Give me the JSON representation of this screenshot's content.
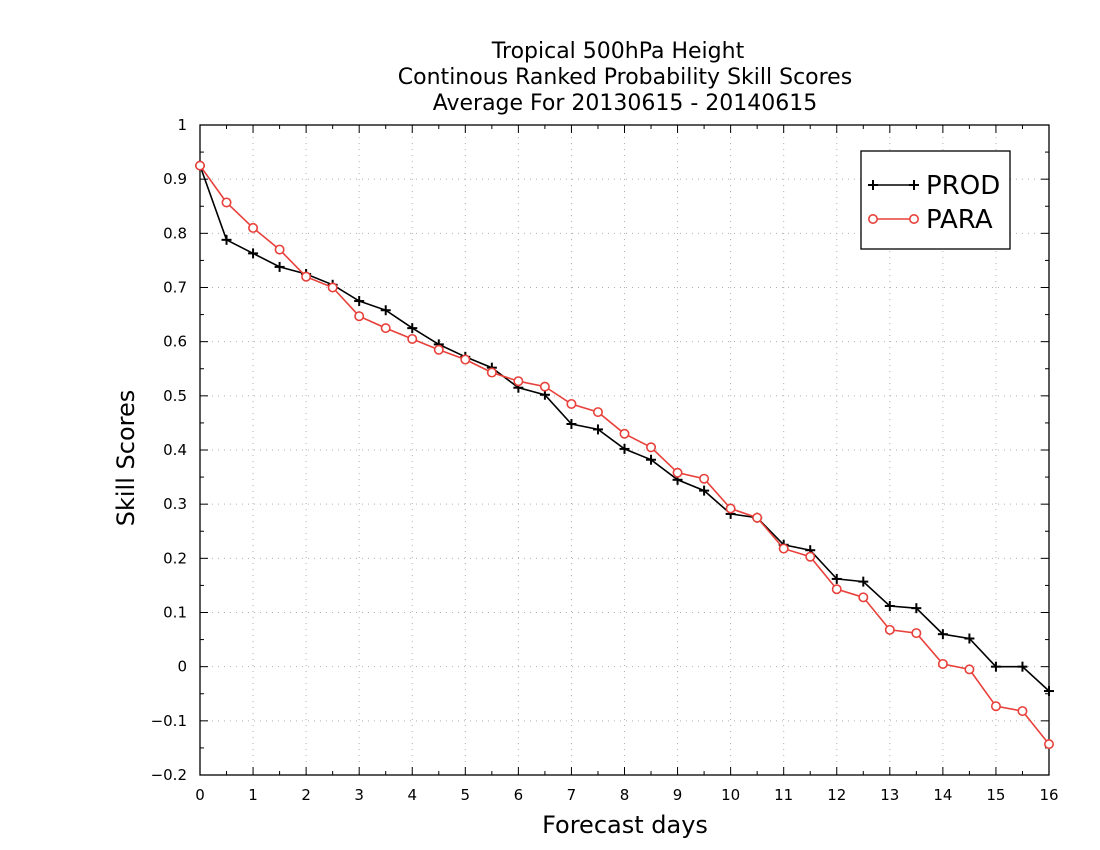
{
  "chart_data": {
    "type": "line",
    "title": [
      "Tropical 500hPa Height",
      "Continous Ranked Probability Skill Scores",
      "Average For 20130615 - 20140615"
    ],
    "xlabel": "Forecast days",
    "ylabel": "Skill Scores",
    "xlim": [
      0,
      16
    ],
    "ylim": [
      -0.2,
      1
    ],
    "xticks": [
      "0",
      "1",
      "2",
      "3",
      "4",
      "5",
      "6",
      "7",
      "8",
      "9",
      "10",
      "11",
      "12",
      "13",
      "14",
      "15",
      "16"
    ],
    "yticks": [
      "−0.2",
      "−0.1",
      "0",
      "0.1",
      "0.2",
      "0.3",
      "0.4",
      "0.5",
      "0.6",
      "0.7",
      "0.8",
      "0.9",
      "1"
    ],
    "grid": true,
    "legend_position": "top-right",
    "x": [
      0,
      0.5,
      1,
      1.5,
      2,
      2.5,
      3,
      3.5,
      4,
      4.5,
      5,
      5.5,
      6,
      6.5,
      7,
      7.5,
      8,
      8.5,
      9,
      9.5,
      10,
      10.5,
      11,
      11.5,
      12,
      12.5,
      13,
      13.5,
      14,
      14.5,
      15,
      15.5,
      16
    ],
    "series": [
      {
        "name": "PROD",
        "color": "#000000",
        "marker": "plus",
        "values": [
          0.925,
          0.788,
          0.763,
          0.738,
          0.725,
          0.705,
          0.675,
          0.658,
          0.625,
          0.595,
          0.572,
          0.552,
          0.515,
          0.502,
          0.448,
          0.438,
          0.402,
          0.382,
          0.345,
          0.325,
          0.282,
          0.275,
          0.225,
          0.215,
          0.162,
          0.157,
          0.112,
          0.108,
          0.06,
          0.052,
          0.0,
          0.0,
          -0.045
        ]
      },
      {
        "name": "PARA",
        "color": "#e8403a",
        "marker": "circle",
        "values": [
          0.925,
          0.857,
          0.81,
          0.77,
          0.72,
          0.7,
          0.647,
          0.625,
          0.605,
          0.585,
          0.567,
          0.543,
          0.527,
          0.517,
          0.485,
          0.47,
          0.43,
          0.405,
          0.358,
          0.347,
          0.292,
          0.275,
          0.218,
          0.203,
          0.143,
          0.128,
          0.068,
          0.062,
          0.005,
          -0.005,
          -0.073,
          -0.082,
          -0.143
        ]
      }
    ]
  }
}
